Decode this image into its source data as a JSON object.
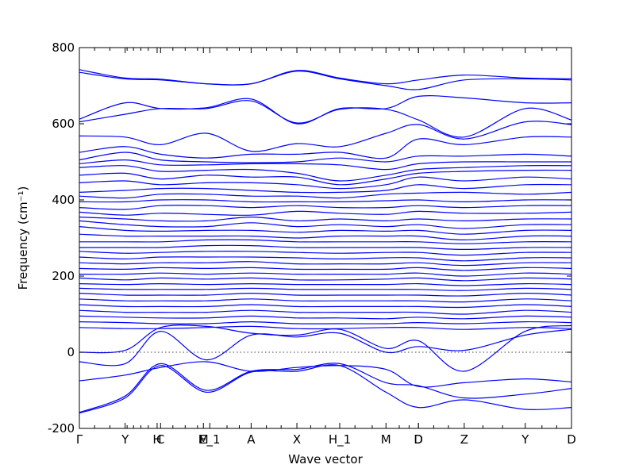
{
  "chart_data": {
    "type": "line",
    "xlabel": "Wave vector",
    "ylabel": "Frequency (cm⁻¹)",
    "ylim": [
      -200,
      800
    ],
    "yticks": [
      -200,
      0,
      200,
      400,
      600,
      800
    ],
    "xlim": [
      0,
      1
    ],
    "grid": false,
    "legend": "none",
    "zero_line": true,
    "line_color": "#0000ff",
    "high_symmetry_points": [
      {
        "label": "Γ",
        "x": 0.0
      },
      {
        "label": "Y",
        "x": 0.093
      },
      {
        "label": "H",
        "x": 0.158
      },
      {
        "label": "C",
        "x": 0.165
      },
      {
        "label": "M",
        "x": 0.252
      },
      {
        "label": "E_1",
        "x": 0.265
      },
      {
        "label": "A",
        "x": 0.349
      },
      {
        "label": "X",
        "x": 0.442
      },
      {
        "label": "H_1",
        "x": 0.529
      },
      {
        "label": "M",
        "x": 0.623
      },
      {
        "label": "D",
        "x": 0.689
      },
      {
        "label": "D",
        "x": 0.689
      },
      {
        "label": "Z",
        "x": 0.782
      },
      {
        "label": "Y",
        "x": 0.906
      },
      {
        "label": "D",
        "x": 1.0
      }
    ],
    "minor_ticks_x": [
      0.031,
      0.062,
      0.097,
      0.11,
      0.125,
      0.14,
      0.19,
      0.215,
      0.24,
      0.3,
      0.325,
      0.38,
      0.41,
      0.47,
      0.5,
      0.56,
      0.595,
      0.65,
      0.67,
      0.72,
      0.75,
      0.82,
      0.86,
      0.94,
      0.97
    ],
    "series_x": [
      0.0,
      0.093,
      0.165,
      0.258,
      0.349,
      0.442,
      0.529,
      0.623,
      0.689,
      0.782,
      0.906,
      1.0
    ],
    "series": [
      {
        "values": [
          742,
          720,
          717,
          705,
          705,
          740,
          720,
          705,
          715,
          728,
          720,
          718
        ]
      },
      {
        "values": [
          735,
          718,
          715,
          705,
          705,
          738,
          718,
          700,
          690,
          715,
          718,
          715
        ]
      },
      {
        "values": [
          612,
          655,
          640,
          642,
          665,
          600,
          640,
          640,
          672,
          668,
          655,
          655
        ]
      },
      {
        "values": [
          605,
          625,
          640,
          640,
          660,
          602,
          638,
          638,
          610,
          565,
          640,
          610
        ]
      },
      {
        "values": [
          568,
          565,
          545,
          575,
          528,
          548,
          540,
          575,
          598,
          560,
          605,
          598
        ]
      },
      {
        "values": [
          525,
          540,
          520,
          510,
          520,
          520,
          525,
          510,
          560,
          545,
          565,
          565
        ]
      },
      {
        "values": [
          505,
          525,
          505,
          500,
          498,
          500,
          510,
          500,
          515,
          515,
          520,
          515
        ]
      },
      {
        "values": [
          495,
          505,
          492,
          492,
          495,
          495,
          492,
          480,
          495,
          500,
          500,
          500
        ]
      },
      {
        "values": [
          485,
          490,
          475,
          478,
          480,
          470,
          450,
          465,
          480,
          485,
          490,
          490
        ]
      },
      {
        "values": [
          465,
          470,
          455,
          465,
          460,
          460,
          440,
          455,
          470,
          475,
          478,
          478
        ]
      },
      {
        "values": [
          445,
          450,
          440,
          445,
          445,
          440,
          430,
          440,
          460,
          450,
          460,
          455
        ]
      },
      {
        "values": [
          420,
          425,
          430,
          430,
          425,
          420,
          420,
          425,
          440,
          430,
          440,
          440
        ]
      },
      {
        "values": [
          410,
          405,
          415,
          415,
          410,
          410,
          405,
          415,
          418,
          420,
          415,
          420
        ]
      },
      {
        "values": [
          395,
          395,
          400,
          400,
          395,
          395,
          395,
          398,
          400,
          395,
          400,
          400
        ]
      },
      {
        "values": [
          380,
          375,
          385,
          385,
          380,
          385,
          380,
          380,
          385,
          380,
          385,
          385
        ]
      },
      {
        "values": [
          368,
          360,
          365,
          362,
          360,
          370,
          365,
          362,
          370,
          365,
          365,
          368
        ]
      },
      {
        "values": [
          355,
          350,
          345,
          345,
          355,
          345,
          350,
          345,
          350,
          345,
          350,
          350
        ]
      },
      {
        "values": [
          345,
          335,
          330,
          330,
          340,
          330,
          335,
          330,
          335,
          325,
          335,
          335
        ]
      },
      {
        "values": [
          330,
          320,
          318,
          320,
          320,
          315,
          320,
          318,
          320,
          310,
          320,
          320
        ]
      },
      {
        "values": [
          310,
          305,
          305,
          305,
          305,
          300,
          305,
          305,
          305,
          295,
          305,
          305
        ]
      },
      {
        "values": [
          290,
          290,
          290,
          295,
          295,
          290,
          290,
          290,
          290,
          285,
          290,
          290
        ]
      },
      {
        "values": [
          275,
          275,
          275,
          280,
          280,
          275,
          275,
          275,
          275,
          270,
          275,
          275
        ]
      },
      {
        "values": [
          265,
          260,
          262,
          265,
          265,
          262,
          260,
          262,
          262,
          255,
          262,
          262
        ]
      },
      {
        "values": [
          250,
          245,
          250,
          250,
          250,
          248,
          245,
          248,
          248,
          240,
          248,
          248
        ]
      },
      {
        "values": [
          235,
          232,
          235,
          235,
          238,
          232,
          232,
          232,
          235,
          228,
          235,
          235
        ]
      },
      {
        "values": [
          220,
          218,
          222,
          220,
          222,
          218,
          218,
          218,
          222,
          215,
          222,
          220
        ]
      },
      {
        "values": [
          205,
          205,
          208,
          205,
          208,
          205,
          205,
          205,
          208,
          200,
          208,
          205
        ]
      },
      {
        "values": [
          195,
          190,
          195,
          192,
          195,
          190,
          190,
          192,
          195,
          188,
          195,
          192
        ]
      },
      {
        "values": [
          180,
          178,
          180,
          178,
          180,
          178,
          178,
          178,
          180,
          175,
          180,
          178
        ]
      },
      {
        "values": [
          168,
          165,
          165,
          165,
          168,
          165,
          165,
          165,
          165,
          162,
          168,
          165
        ]
      },
      {
        "values": [
          155,
          150,
          150,
          150,
          155,
          150,
          150,
          150,
          150,
          148,
          155,
          150
        ]
      },
      {
        "values": [
          140,
          135,
          135,
          135,
          140,
          135,
          135,
          135,
          135,
          132,
          140,
          135
        ]
      },
      {
        "values": [
          125,
          120,
          120,
          120,
          125,
          120,
          120,
          120,
          120,
          118,
          125,
          120
        ]
      },
      {
        "values": [
          110,
          105,
          105,
          105,
          110,
          105,
          105,
          105,
          105,
          100,
          110,
          105
        ]
      },
      {
        "values": [
          95,
          92,
          90,
          90,
          95,
          90,
          90,
          88,
          92,
          88,
          95,
          92
        ]
      },
      {
        "values": [
          80,
          78,
          75,
          75,
          80,
          75,
          75,
          75,
          78,
          75,
          80,
          78
        ]
      },
      {
        "values": [
          65,
          62,
          62,
          65,
          68,
          62,
          62,
          65,
          65,
          60,
          65,
          62
        ]
      },
      {
        "values": [
          0,
          5,
          65,
          68,
          50,
          45,
          60,
          10,
          30,
          -50,
          55,
          70
        ]
      },
      {
        "values": [
          -25,
          -30,
          55,
          -20,
          45,
          40,
          50,
          0,
          15,
          5,
          45,
          60
        ]
      },
      {
        "values": [
          -75,
          -60,
          -40,
          -25,
          -50,
          -40,
          -35,
          -45,
          -90,
          -80,
          -70,
          -78
        ]
      },
      {
        "values": [
          -158,
          -115,
          -30,
          -100,
          -50,
          -45,
          -30,
          -80,
          -88,
          -120,
          -110,
          -95
        ]
      },
      {
        "values": [
          -160,
          -120,
          -35,
          -105,
          -52,
          -50,
          -35,
          -105,
          -145,
          -125,
          -150,
          -145
        ]
      }
    ]
  }
}
